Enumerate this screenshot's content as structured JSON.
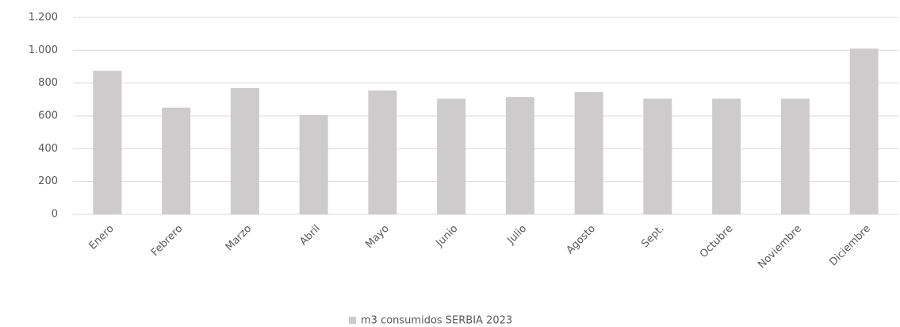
{
  "chart_data": {
    "type": "bar",
    "categories": [
      "Enero",
      "Febrero",
      "Marzo",
      "Abril",
      "Mayo",
      "Junio",
      "Julio",
      "Agosto",
      "Sept.",
      "Octubre",
      "Noviembre",
      "Diciembre"
    ],
    "series": [
      {
        "name": "m3 consumidos SERBIA 2023",
        "color": "#cdcbcb",
        "values": [
          875,
          650,
          770,
          605,
          755,
          705,
          715,
          745,
          705,
          705,
          705,
          1010
        ]
      }
    ],
    "ylim": [
      0,
      1200
    ],
    "yticks": [
      0,
      200,
      400,
      600,
      800,
      {
        "value": 1000,
        "label": "1.000"
      },
      {
        "value": 1200,
        "label": "1.200"
      }
    ],
    "grid": true,
    "legend": "bottom"
  }
}
